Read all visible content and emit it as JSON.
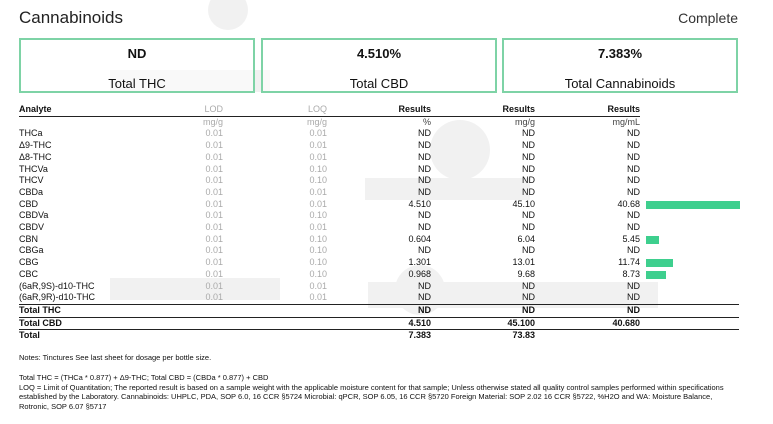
{
  "page": {
    "title": "Cannabinoids",
    "status": "Complete"
  },
  "summary": [
    {
      "value": "ND",
      "label": "Total THC"
    },
    {
      "value": "4.510%",
      "label": "Total CBD"
    },
    {
      "value": "7.383%",
      "label": "Total Cannabinoids"
    }
  ],
  "table": {
    "headers": [
      "Analyte",
      "LOD",
      "LOQ",
      "Results",
      "Results",
      "Results"
    ],
    "units": [
      "",
      "mg/g",
      "mg/g",
      "%",
      "mg/g",
      "mg/mL"
    ],
    "rows": [
      {
        "name": "THCa",
        "lod": "0.01",
        "loq": "0.01",
        "pct": "ND",
        "mgg": "ND",
        "mgml": "ND",
        "bar": 0
      },
      {
        "name": "Δ9-THC",
        "lod": "0.01",
        "loq": "0.01",
        "pct": "ND",
        "mgg": "ND",
        "mgml": "ND",
        "bar": 0
      },
      {
        "name": "Δ8-THC",
        "lod": "0.01",
        "loq": "0.01",
        "pct": "ND",
        "mgg": "ND",
        "mgml": "ND",
        "bar": 0
      },
      {
        "name": "THCVa",
        "lod": "0.01",
        "loq": "0.10",
        "pct": "ND",
        "mgg": "ND",
        "mgml": "ND",
        "bar": 0
      },
      {
        "name": "THCV",
        "lod": "0.01",
        "loq": "0.10",
        "pct": "ND",
        "mgg": "ND",
        "mgml": "ND",
        "bar": 0
      },
      {
        "name": "CBDa",
        "lod": "0.01",
        "loq": "0.01",
        "pct": "ND",
        "mgg": "ND",
        "mgml": "ND",
        "bar": 0
      },
      {
        "name": "CBD",
        "lod": "0.01",
        "loq": "0.01",
        "pct": "4.510",
        "mgg": "45.10",
        "mgml": "40.68",
        "bar": 40.68
      },
      {
        "name": "CBDVa",
        "lod": "0.01",
        "loq": "0.10",
        "pct": "ND",
        "mgg": "ND",
        "mgml": "ND",
        "bar": 0
      },
      {
        "name": "CBDV",
        "lod": "0.01",
        "loq": "0.01",
        "pct": "ND",
        "mgg": "ND",
        "mgml": "ND",
        "bar": 0
      },
      {
        "name": "CBN",
        "lod": "0.01",
        "loq": "0.10",
        "pct": "0.604",
        "mgg": "6.04",
        "mgml": "5.45",
        "bar": 5.45
      },
      {
        "name": "CBGa",
        "lod": "0.01",
        "loq": "0.10",
        "pct": "ND",
        "mgg": "ND",
        "mgml": "ND",
        "bar": 0
      },
      {
        "name": "CBG",
        "lod": "0.01",
        "loq": "0.10",
        "pct": "1.301",
        "mgg": "13.01",
        "mgml": "11.74",
        "bar": 11.74
      },
      {
        "name": "CBC",
        "lod": "0.01",
        "loq": "0.10",
        "pct": "0.968",
        "mgg": "9.68",
        "mgml": "8.73",
        "bar": 8.73
      },
      {
        "name": "(6aR,9S)-d10-THC",
        "lod": "0.01",
        "loq": "0.01",
        "pct": "ND",
        "mgg": "ND",
        "mgml": "ND",
        "bar": 0
      },
      {
        "name": "(6aR,9R)-d10-THC",
        "lod": "0.01",
        "loq": "0.01",
        "pct": "ND",
        "mgg": "ND",
        "mgml": "ND",
        "bar": 0
      }
    ],
    "totals": [
      {
        "name": "Total THC",
        "pct": "ND",
        "mgg": "ND",
        "mgml": "ND"
      },
      {
        "name": "Total CBD",
        "pct": "4.510",
        "mgg": "45.100",
        "mgml": "40.680"
      },
      {
        "name": "Total",
        "pct": "7.383",
        "mgg": "73.83",
        "mgml": ""
      }
    ],
    "bar_max": 40.68,
    "bar_color": "#3ecf8e"
  },
  "notes": "Notes: Tinctures See last sheet for dosage per bottle size.",
  "formula": [
    "Total THC = (THCa * 0.877) + Δ9-THC; Total CBD = (CBDa * 0.877) + CBD",
    "LOQ = Limit of Quantitation; The reported result is based on a sample weight with the applicable moisture content for that sample; Unless otherwise stated all quality control samples performed within specifications established by the Laboratory. Cannabinoids: UHPLC,  PDA, SOP 6.0, 16 CCR §5724 Microbial: qPCR, SOP 6.05, 16 CCR §5720  Foreign Material: SOP 2.02 16 CCR §5722, %H2O and WA: Moisture  Balance,  Rotronic, SOP 6.07 §5717"
  ]
}
